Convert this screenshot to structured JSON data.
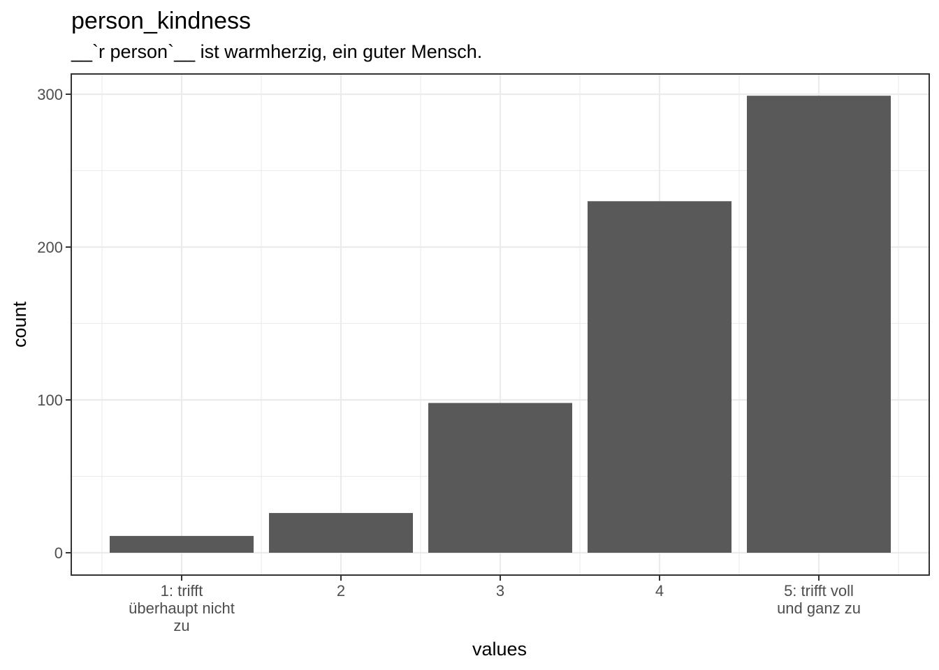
{
  "chart_data": {
    "type": "bar",
    "title": "person_kindness",
    "subtitle": "__`r person`__ ist warmherzig, ein guter Mensch.",
    "xlabel": "values",
    "ylabel": "count",
    "categories": [
      [
        "1: trifft",
        "überhaupt nicht",
        "zu"
      ],
      [
        "2"
      ],
      [
        "3"
      ],
      [
        "4"
      ],
      [
        "5: trifft voll",
        "und ganz zu"
      ]
    ],
    "values": [
      11,
      26,
      98,
      230,
      299
    ],
    "yticks": [
      0,
      100,
      200,
      300
    ],
    "ylim": [
      -14.95,
      313.95
    ],
    "grid": true,
    "bar_color": "#595959"
  }
}
